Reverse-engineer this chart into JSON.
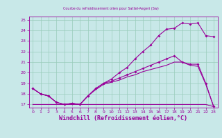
{
  "title": "Courbe du refroidissement olien pour Sattel-Aegeri (Sw)",
  "xlabel": "Windchill (Refroidissement éolien,°C)",
  "background_color": "#c8e8e8",
  "grid_color": "#99ccbb",
  "line_color": "#990099",
  "xlim": [
    -0.5,
    23.5
  ],
  "ylim": [
    16.7,
    25.3
  ],
  "yticks": [
    17,
    18,
    19,
    20,
    21,
    22,
    23,
    24,
    25
  ],
  "xticks": [
    0,
    1,
    2,
    3,
    4,
    5,
    6,
    7,
    8,
    9,
    10,
    11,
    12,
    13,
    14,
    15,
    16,
    17,
    18,
    19,
    20,
    21,
    22,
    23
  ],
  "s1_x": [
    0,
    1,
    2,
    3,
    4,
    5,
    6,
    7,
    8,
    9,
    10,
    11,
    12,
    13,
    14,
    15,
    16,
    17,
    18,
    19,
    20,
    21,
    22,
    23
  ],
  "s1_y": [
    18.5,
    18.0,
    17.8,
    17.2,
    17.0,
    17.1,
    17.0,
    17.8,
    18.5,
    19.0,
    19.4,
    20.0,
    20.5,
    21.3,
    22.0,
    22.6,
    23.5,
    24.1,
    24.2,
    24.7,
    24.6,
    24.7,
    23.5,
    23.4
  ],
  "s2_x": [
    0,
    1,
    2,
    3,
    4,
    5,
    6,
    7,
    8,
    9,
    10,
    11,
    12,
    13,
    14,
    15,
    16,
    17,
    18,
    19,
    20,
    21,
    22,
    23
  ],
  "s2_y": [
    18.5,
    18.0,
    17.8,
    17.2,
    17.0,
    17.1,
    17.0,
    17.8,
    18.5,
    19.0,
    19.2,
    19.5,
    19.8,
    20.1,
    20.4,
    20.7,
    21.0,
    21.3,
    21.6,
    21.0,
    20.8,
    20.8,
    19.0,
    16.8
  ],
  "s3_x": [
    0,
    1,
    2,
    3,
    4,
    5,
    6,
    7,
    8,
    9,
    10,
    11,
    12,
    13,
    14,
    15,
    16,
    17,
    18,
    19,
    20,
    21,
    22,
    23
  ],
  "s3_y": [
    18.5,
    18.0,
    17.8,
    17.2,
    17.0,
    17.1,
    17.0,
    17.8,
    18.4,
    18.9,
    19.1,
    19.3,
    19.6,
    19.8,
    20.1,
    20.3,
    20.5,
    20.7,
    21.0,
    21.0,
    20.7,
    20.6,
    18.9,
    16.8
  ],
  "s4_x": [
    0,
    1,
    2,
    3,
    4,
    5,
    6,
    7,
    8,
    9,
    10,
    11,
    12,
    13,
    14,
    15,
    16,
    17,
    18,
    19,
    20,
    21,
    22,
    23
  ],
  "s4_y": [
    17.0,
    17.0,
    17.0,
    17.0,
    17.0,
    17.0,
    17.0,
    17.0,
    17.0,
    17.0,
    17.0,
    17.0,
    17.0,
    17.0,
    17.0,
    17.0,
    17.0,
    17.0,
    17.0,
    17.0,
    17.0,
    17.0,
    17.0,
    16.8
  ],
  "title_fontsize": 5,
  "xlabel_fontsize": 6,
  "tick_fontsize": 4.5,
  "linewidth": 0.8,
  "markersize": 2.0
}
